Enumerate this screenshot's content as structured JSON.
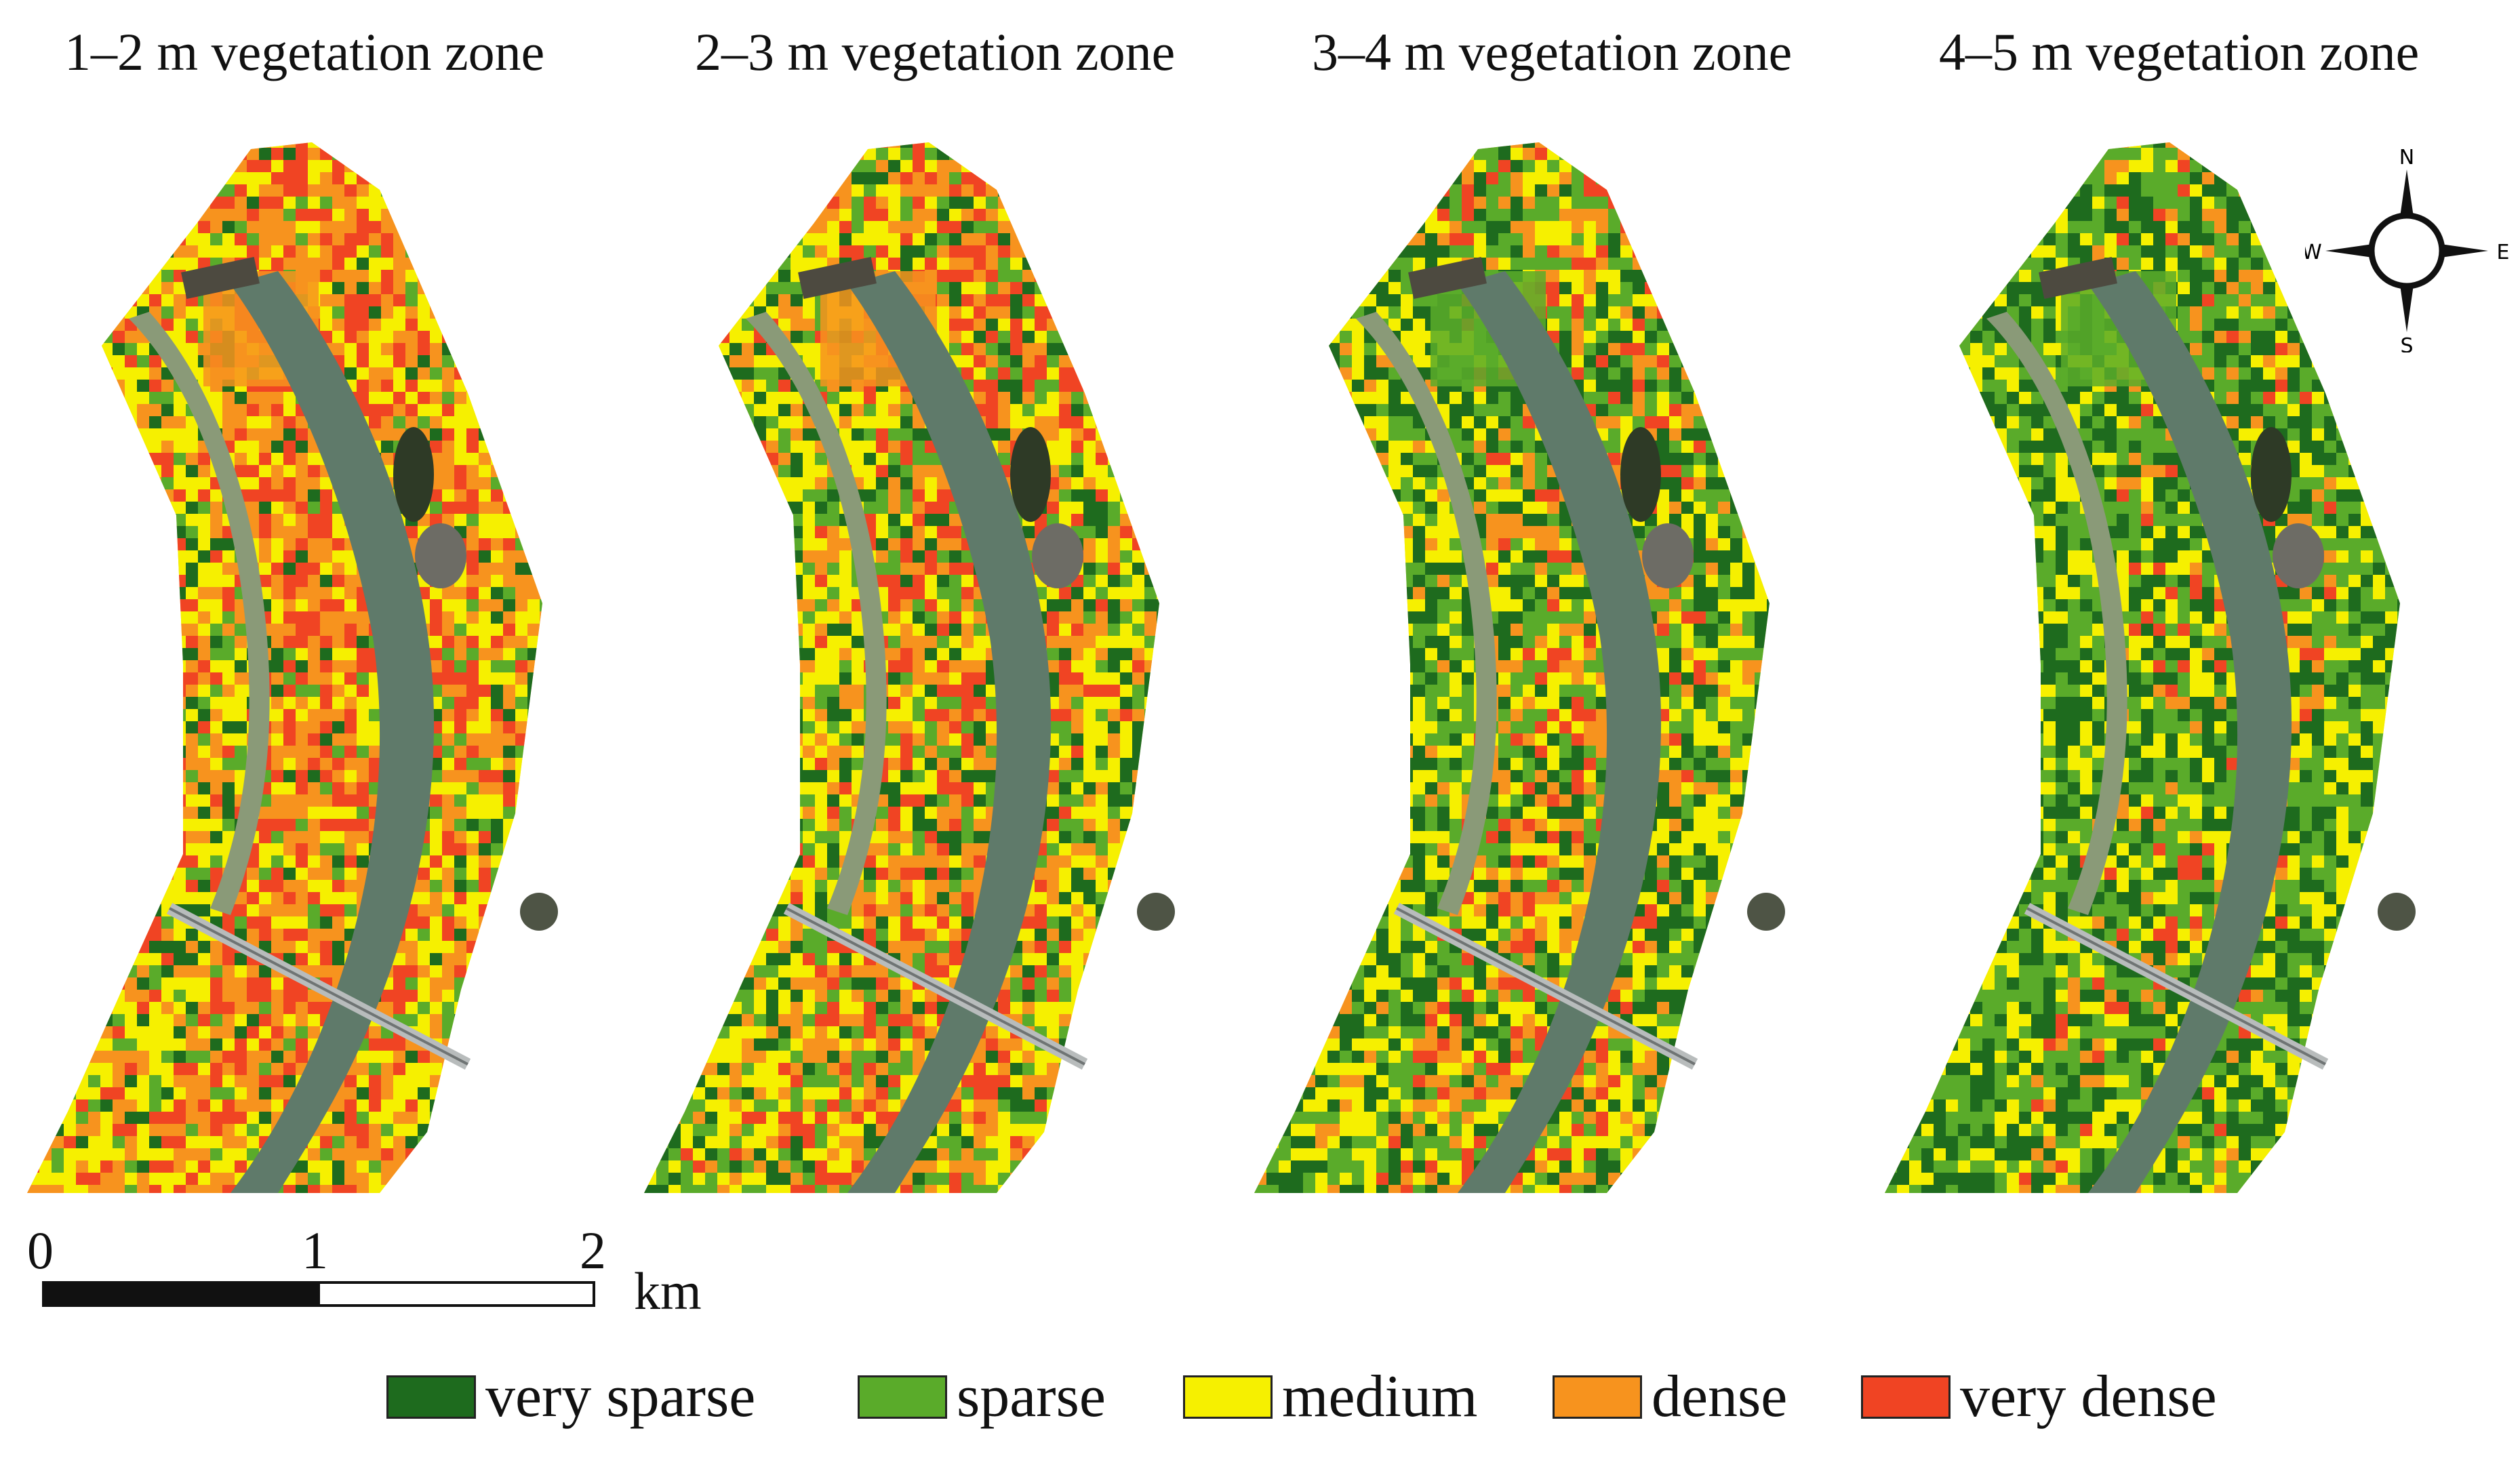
{
  "panels": [
    {
      "title": "1–2 m vegetation zone"
    },
    {
      "title": "2–3 m vegetation zone"
    },
    {
      "title": "3–4 m vegetation zone"
    },
    {
      "title": "4–5 m vegetation zone"
    }
  ],
  "legend": {
    "items": [
      {
        "label": "very sparse",
        "color": "#1e6b1e"
      },
      {
        "label": "sparse",
        "color": "#5aab2a"
      },
      {
        "label": "medium",
        "color": "#f6f000"
      },
      {
        "label": "dense",
        "color": "#f7931e"
      },
      {
        "label": "very dense",
        "color": "#f04423"
      }
    ]
  },
  "scale_bar": {
    "ticks": [
      "0",
      "1",
      "2"
    ],
    "unit": "km"
  },
  "compass": {
    "n": "N",
    "e": "E",
    "s": "S",
    "w": "W",
    "icon": "north-arrow-icon"
  },
  "colors": {
    "river": "#5f7a6a",
    "bank": "#8a9a78",
    "bridge": "#b8bcbc"
  }
}
